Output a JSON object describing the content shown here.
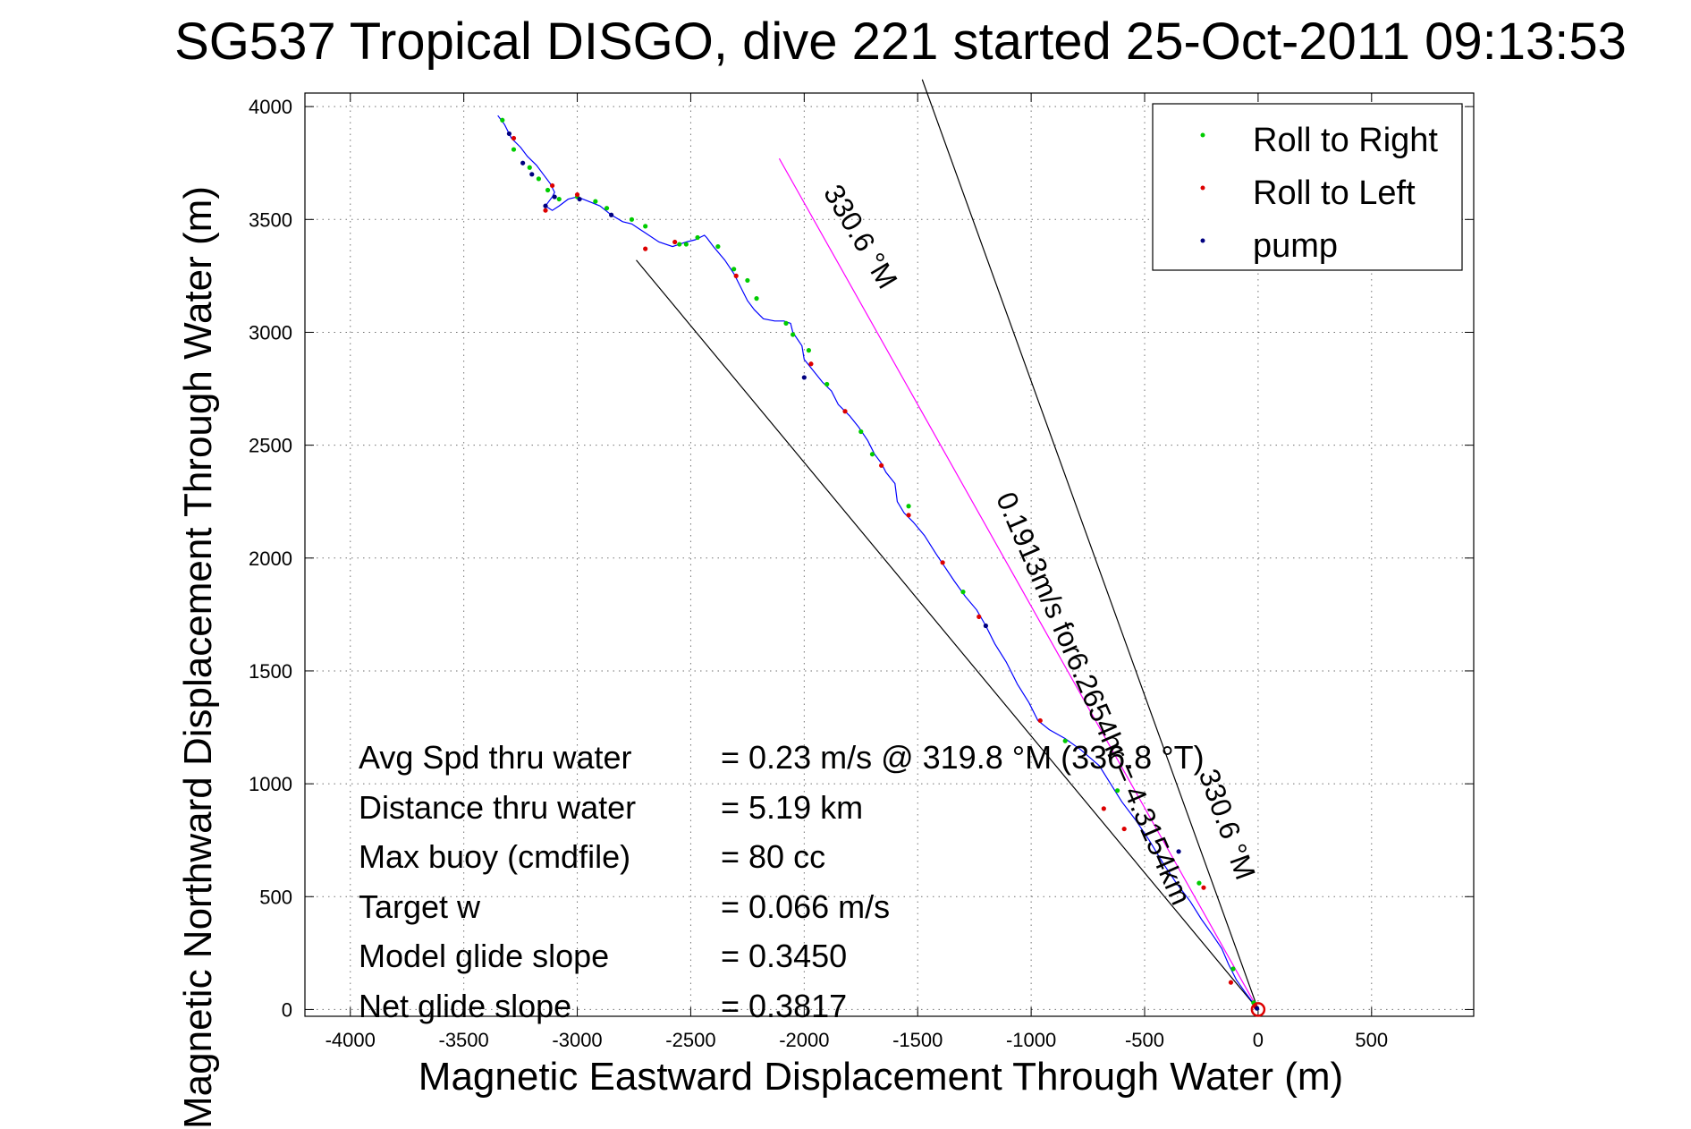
{
  "chart_data": {
    "type": "line",
    "title": "SG537 Tropical DISGO, dive 221 started 25-Oct-2011 09:13:53",
    "xlabel": "Magnetic Eastward Displacement Through Water (m)",
    "ylabel": "Magnetic Northward Displacement Through Water (m)",
    "xlim": [
      -4200,
      950
    ],
    "ylim": [
      -30,
      4060
    ],
    "xticks": [
      -4000,
      -3500,
      -3000,
      -2500,
      -2000,
      -1500,
      -1000,
      -500,
      0,
      500
    ],
    "yticks": [
      0,
      500,
      1000,
      1500,
      2000,
      2500,
      3000,
      3500,
      4000
    ],
    "grid": true,
    "legend_position": "top-right",
    "legend": [
      {
        "label": "Roll to Right",
        "color": "#00cc00"
      },
      {
        "label": "Roll to Left",
        "color": "#dd0000"
      },
      {
        "label": "pump",
        "color": "#000080"
      }
    ],
    "track": {
      "color": "#0000ff",
      "x": [
        0,
        -30,
        -60,
        -95,
        -130,
        -160,
        -200,
        -250,
        -300,
        -360,
        -420,
        -480,
        -540,
        -600,
        -650,
        -700,
        -780,
        -850,
        -920,
        -970,
        -1010,
        -1060,
        -1110,
        -1160,
        -1200,
        -1240,
        -1290,
        -1340,
        -1380,
        -1420,
        -1470,
        -1520,
        -1560,
        -1590,
        -1600,
        -1640,
        -1660,
        -1690,
        -1720,
        -1760,
        -1800,
        -1850,
        -1880,
        -1920,
        -1960,
        -2000,
        -2010,
        -2050,
        -2060,
        -2090,
        -2130,
        -2180,
        -2220,
        -2250,
        -2280,
        -2310,
        -2350,
        -2400,
        -2430,
        -2440,
        -2460,
        -2480,
        -2520,
        -2580,
        -2640,
        -2700,
        -2730,
        -2760,
        -2800,
        -2850,
        -2900,
        -2950,
        -3000,
        -3040,
        -3080,
        -3110,
        -3140,
        -3110,
        -3100,
        -3120,
        -3150,
        -3180,
        -3220,
        -3250,
        -3290,
        -3320,
        -3350
      ],
      "y": [
        0,
        40,
        80,
        130,
        200,
        270,
        330,
        400,
        480,
        560,
        650,
        750,
        840,
        920,
        1000,
        1080,
        1150,
        1200,
        1240,
        1280,
        1360,
        1440,
        1540,
        1620,
        1700,
        1770,
        1830,
        1900,
        1960,
        2020,
        2100,
        2160,
        2200,
        2250,
        2330,
        2380,
        2420,
        2460,
        2520,
        2580,
        2630,
        2680,
        2740,
        2780,
        2830,
        2880,
        2940,
        3000,
        3040,
        3050,
        3050,
        3060,
        3100,
        3140,
        3200,
        3260,
        3320,
        3380,
        3420,
        3430,
        3420,
        3410,
        3400,
        3380,
        3400,
        3440,
        3460,
        3480,
        3490,
        3520,
        3560,
        3580,
        3600,
        3590,
        3560,
        3540,
        3560,
        3600,
        3620,
        3660,
        3700,
        3740,
        3780,
        3820,
        3860,
        3920,
        3960
      ]
    },
    "roll_right_points": {
      "x": [
        -20,
        -110,
        -260,
        -620,
        -850,
        -1300,
        -1540,
        -1700,
        -1750,
        -1900,
        -1980,
        -2050,
        -2080,
        -2210,
        -2250,
        -2310,
        -2380,
        -2470,
        -2520,
        -2550,
        -2700,
        -2760,
        -2870,
        -2920,
        -3000,
        -3080,
        -3130,
        -3170,
        -3210,
        -3280,
        -3330
      ],
      "y": [
        30,
        180,
        560,
        970,
        1190,
        1850,
        2230,
        2460,
        2560,
        2770,
        2920,
        2990,
        3040,
        3150,
        3230,
        3280,
        3380,
        3420,
        3390,
        3390,
        3470,
        3500,
        3550,
        3580,
        3600,
        3590,
        3630,
        3680,
        3730,
        3810,
        3940
      ]
    },
    "roll_left_points": {
      "x": [
        -10,
        -120,
        -240,
        -590,
        -680,
        -960,
        -1230,
        -1390,
        -1540,
        -1660,
        -1820,
        -1970,
        -2300,
        -2570,
        -2700,
        -3000,
        -3110,
        -3140,
        -3280
      ],
      "y": [
        10,
        120,
        540,
        800,
        890,
        1280,
        1740,
        1980,
        2190,
        2410,
        2650,
        2860,
        3250,
        3400,
        3370,
        3610,
        3650,
        3540,
        3860
      ]
    },
    "pump_points": {
      "x": [
        -5,
        -350,
        -1200,
        -2000,
        -2850,
        -2990,
        -3100,
        -3140,
        -3200,
        -3240,
        -3300
      ],
      "y": [
        5,
        700,
        1700,
        2800,
        3520,
        3590,
        3600,
        3560,
        3700,
        3750,
        3880
      ]
    },
    "heading_lines": [
      {
        "x": [
          0,
          -1480
        ],
        "y": [
          0,
          4120
        ],
        "color": "#000000"
      },
      {
        "x": [
          0,
          -2740
        ],
        "y": [
          0,
          3320
        ],
        "color": "#000000"
      },
      {
        "x": [
          0,
          -2110
        ],
        "y": [
          0,
          3770
        ],
        "color": "#ff00ff"
      }
    ],
    "line_labels": [
      {
        "text": "330.6 °M",
        "color": "#000000"
      },
      {
        "text": "330.6 °M",
        "color": "#000000"
      },
      {
        "text": "0.1913m/s for6.2654hr = 4.3154km",
        "color": "#000000"
      }
    ],
    "annotations": [
      {
        "label": "Avg Spd thru water",
        "value": "=  0.23 m/s @ 319.8  °M (336.8 °T)"
      },
      {
        "label": "Distance thru water",
        "value": "=  5.19 km"
      },
      {
        "label": "Max buoy (cmdfile)",
        "value": "= 80 cc"
      },
      {
        "label": "Target w",
        "value": "= 0.066 m/s"
      },
      {
        "label": "Model glide slope",
        "value": "= 0.3450"
      },
      {
        "label": "Net glide slope",
        "value": "= 0.3817"
      }
    ]
  }
}
